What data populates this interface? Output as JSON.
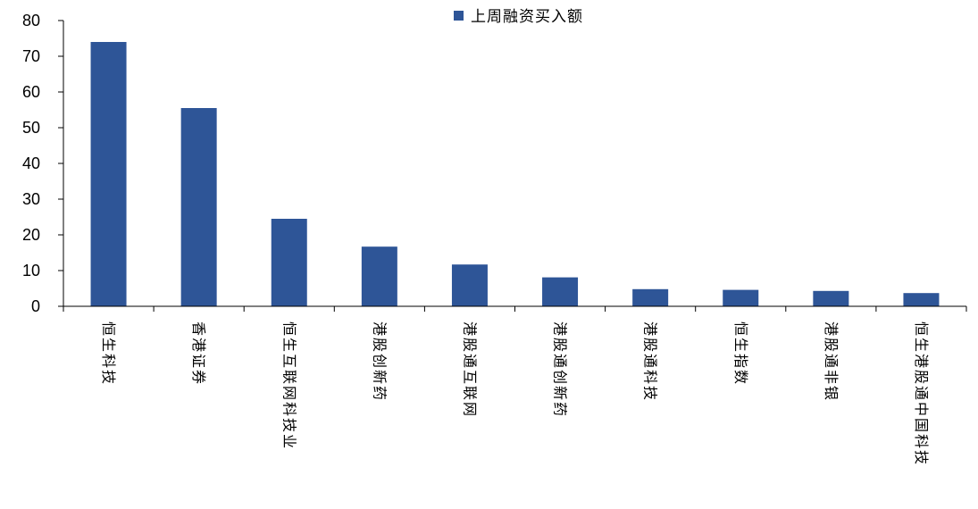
{
  "chart_data": {
    "type": "bar",
    "categories": [
      "恒生科技",
      "香港证券",
      "恒生互联网科技业",
      "港股创新药",
      "港股通互联网",
      "港股通创新药",
      "港股通科技",
      "恒生指数",
      "港股通非银",
      "恒生港股通中国科技"
    ],
    "series": [
      {
        "name": "上周融资买入额",
        "values": [
          74,
          55.5,
          24.5,
          16.7,
          11.7,
          8.1,
          4.8,
          4.6,
          4.3,
          3.7
        ]
      }
    ],
    "ylim": [
      0,
      80
    ],
    "yticks": [
      0,
      10,
      20,
      30,
      40,
      50,
      60,
      70,
      80
    ],
    "grid": false,
    "legend": "top-center",
    "colors": {
      "bar": "#2e5597",
      "axis": "#000000"
    }
  }
}
